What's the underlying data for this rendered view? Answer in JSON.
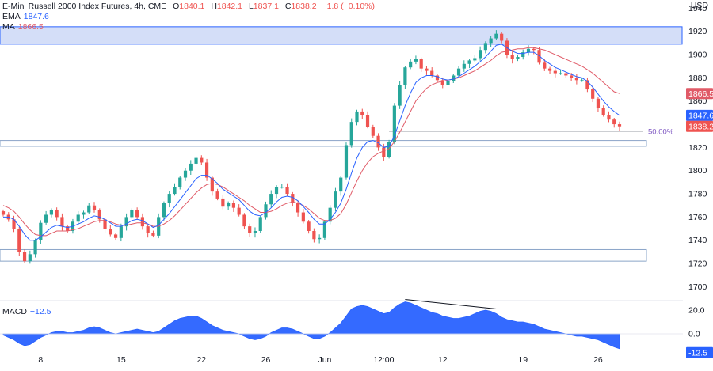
{
  "legend": {
    "symbol": "E-Mini Russell 2000 Index Futures, 4h, CME",
    "open_label": "O",
    "open": "1840.1",
    "high_label": "H",
    "high": "1842.1",
    "low_label": "L",
    "low": "1837.1",
    "close_label": "C",
    "close": "1838.2",
    "change": "−1.8 (−0.10%)",
    "ema_label": "EMA",
    "ema_value": "1847.6",
    "ma_label": "MA",
    "ma_value": "1866.5",
    "macd_label": "MACD",
    "macd_value": "−12.5"
  },
  "currency": "USD",
  "colors": {
    "up": "#26a69a",
    "down": "#ef5350",
    "ema": "#2962ff",
    "ma": "#e05a67",
    "macd_fill": "#2962ff",
    "zone_fill": "#c5d3f6",
    "zone_stroke": "#2962ff",
    "fib": "#7e57c2",
    "ma_badge": "#e05a67",
    "ema_badge": "#2962ff",
    "price_badge": "#ef5350"
  },
  "chart_data": {
    "type": "candlestick",
    "title": "E-Mini Russell 2000 Index Futures, 4h, CME",
    "ylim": [
      1688,
      1943
    ],
    "y_ticks": [
      1700,
      1720,
      1740,
      1760,
      1780,
      1800,
      1820,
      1840,
      1860,
      1880,
      1900,
      1920,
      1940
    ],
    "x_ticks": [
      {
        "label": "8",
        "index": 7
      },
      {
        "label": "15",
        "index": 22
      },
      {
        "label": "22",
        "index": 37
      },
      {
        "label": "26",
        "index": 49
      },
      {
        "label": "Jun",
        "index": 60
      },
      {
        "label": "12:00",
        "index": 71
      },
      {
        "label": "12",
        "index": 82
      },
      {
        "label": "19",
        "index": 97
      },
      {
        "label": "26",
        "index": 111
      }
    ],
    "price_levels": {
      "ma": 1866.5,
      "ema": 1847.6,
      "last": 1838.2
    },
    "fib_level": {
      "label": "50.00%",
      "value": 1834
    },
    "zones": [
      {
        "from": 1909,
        "to": 1924
      },
      {
        "from": 1821,
        "to": 1826
      },
      {
        "from": 1722,
        "to": 1732
      }
    ],
    "close": [
      1762,
      1758,
      1750,
      1730,
      1722,
      1728,
      1740,
      1755,
      1762,
      1766,
      1760,
      1752,
      1748,
      1756,
      1762,
      1764,
      1770,
      1766,
      1758,
      1750,
      1745,
      1742,
      1752,
      1760,
      1766,
      1760,
      1752,
      1746,
      1744,
      1760,
      1772,
      1780,
      1786,
      1794,
      1800,
      1806,
      1811,
      1807,
      1794,
      1782,
      1776,
      1769,
      1772,
      1768,
      1762,
      1752,
      1746,
      1748,
      1760,
      1771,
      1780,
      1786,
      1786,
      1780,
      1772,
      1764,
      1756,
      1748,
      1741,
      1742,
      1756,
      1768,
      1782,
      1794,
      1822,
      1842,
      1851,
      1848,
      1838,
      1830,
      1820,
      1812,
      1825,
      1856,
      1874,
      1889,
      1894,
      1896,
      1888,
      1886,
      1882,
      1878,
      1874,
      1877,
      1882,
      1888,
      1892,
      1895,
      1897,
      1904,
      1910,
      1914,
      1918,
      1912,
      1900,
      1896,
      1898,
      1902,
      1905,
      1904,
      1893,
      1888,
      1886,
      1884,
      1884,
      1882,
      1880,
      1878,
      1878,
      1870,
      1862,
      1854,
      1848,
      1844,
      1840,
      1838.2
    ],
    "ema": [
      1760,
      1760,
      1758,
      1752,
      1745,
      1740,
      1740,
      1743,
      1747,
      1751,
      1753,
      1752,
      1751,
      1752,
      1754,
      1756,
      1759,
      1761,
      1760,
      1758,
      1755,
      1752,
      1752,
      1754,
      1757,
      1758,
      1757,
      1754,
      1751,
      1753,
      1758,
      1763,
      1769,
      1775,
      1781,
      1787,
      1793,
      1796,
      1796,
      1793,
      1789,
      1784,
      1781,
      1778,
      1775,
      1770,
      1765,
      1762,
      1761,
      1764,
      1768,
      1773,
      1777,
      1778,
      1777,
      1774,
      1769,
      1764,
      1758,
      1754,
      1754,
      1758,
      1764,
      1772,
      1784,
      1798,
      1811,
      1820,
      1825,
      1826,
      1824,
      1820,
      1821,
      1830,
      1843,
      1856,
      1867,
      1876,
      1880,
      1882,
      1882,
      1881,
      1879,
      1878,
      1879,
      1881,
      1884,
      1887,
      1890,
      1894,
      1898,
      1903,
      1908,
      1909,
      1906,
      1903,
      1901,
      1901,
      1902,
      1902,
      1899,
      1895,
      1892,
      1889,
      1887,
      1885,
      1883,
      1881,
      1880,
      1877,
      1872,
      1866,
      1860,
      1855,
      1851,
      1847.6
    ],
    "ma": [
      1770,
      1768,
      1765,
      1760,
      1754,
      1749,
      1745,
      1744,
      1744,
      1746,
      1748,
      1748,
      1748,
      1749,
      1750,
      1752,
      1754,
      1756,
      1757,
      1757,
      1756,
      1754,
      1753,
      1753,
      1754,
      1755,
      1755,
      1754,
      1752,
      1752,
      1754,
      1757,
      1761,
      1766,
      1771,
      1776,
      1781,
      1785,
      1788,
      1789,
      1788,
      1786,
      1783,
      1780,
      1777,
      1774,
      1770,
      1767,
      1764,
      1764,
      1765,
      1767,
      1770,
      1772,
      1773,
      1772,
      1770,
      1767,
      1763,
      1759,
      1757,
      1757,
      1759,
      1763,
      1771,
      1781,
      1791,
      1800,
      1807,
      1812,
      1815,
      1817,
      1819,
      1825,
      1833,
      1842,
      1851,
      1860,
      1866,
      1871,
      1874,
      1876,
      1877,
      1878,
      1879,
      1880,
      1882,
      1884,
      1886,
      1889,
      1892,
      1895,
      1899,
      1902,
      1903,
      1904,
      1905,
      1905,
      1906,
      1906,
      1905,
      1904,
      1902,
      1900,
      1898,
      1896,
      1894,
      1892,
      1890,
      1887,
      1884,
      1880,
      1876,
      1872,
      1868,
      1866.5
    ],
    "macd": {
      "ylim": [
        -16,
        28
      ],
      "ticks": [
        20.0,
        0.0
      ],
      "values": [
        -1,
        -3,
        -5,
        -8,
        -10,
        -9,
        -6,
        -3,
        -1,
        1,
        2,
        2,
        1,
        1,
        2,
        3,
        5,
        6,
        5,
        3,
        1,
        0,
        1,
        2,
        3,
        4,
        3,
        2,
        1,
        2,
        5,
        8,
        11,
        13,
        14,
        15,
        15,
        13,
        10,
        7,
        5,
        3,
        2,
        1,
        0,
        -2,
        -4,
        -5,
        -4,
        -2,
        1,
        3,
        5,
        5,
        4,
        2,
        0,
        -2,
        -4,
        -4,
        -2,
        1,
        5,
        9,
        15,
        21,
        23,
        24,
        23,
        21,
        19,
        17,
        18,
        22,
        25,
        27,
        26,
        24,
        22,
        20,
        18,
        17,
        15,
        14,
        13,
        13,
        14,
        15,
        17,
        19,
        20,
        19,
        17,
        14,
        12,
        11,
        10,
        10,
        9,
        8,
        6,
        4,
        3,
        2,
        1,
        0,
        -1,
        -2,
        -2,
        -3,
        -4,
        -5,
        -7,
        -9,
        -11,
        -12.5
      ],
      "divergence_line": {
        "from": {
          "index": 75,
          "value": 27
        },
        "to": {
          "index": 92,
          "value": 19
        }
      }
    }
  }
}
